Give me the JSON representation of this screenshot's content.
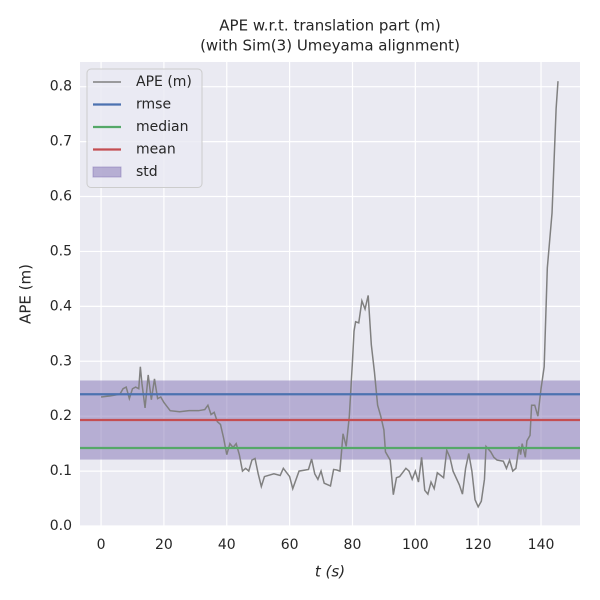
{
  "chart_data": {
    "type": "line",
    "title": [
      "APE w.r.t. translation part (m)",
      "(with Sim(3) Umeyama alignment)"
    ],
    "xlabel": "t (s)",
    "ylabel": "APE (m)",
    "x": [
      0,
      3,
      6,
      7,
      8,
      9,
      10,
      11,
      12,
      12.5,
      13,
      14,
      15,
      16,
      17,
      18,
      19,
      20,
      22,
      25,
      28,
      31,
      33,
      34,
      35,
      36,
      37,
      38,
      39,
      40,
      41,
      42,
      43,
      44,
      45,
      46,
      47,
      48,
      49,
      50,
      51,
      52,
      55,
      57,
      58,
      60,
      61,
      63,
      66,
      67,
      68,
      69,
      70,
      71,
      73,
      74,
      75,
      76,
      77,
      78,
      79,
      80,
      80.5,
      81,
      82,
      83,
      84,
      85,
      86,
      87,
      88,
      89,
      90,
      90.5,
      92,
      93,
      94,
      95,
      97,
      98,
      99,
      100,
      101,
      102,
      103,
      104,
      105,
      106,
      107,
      109,
      110,
      111,
      112,
      114,
      115,
      116,
      117,
      118,
      119,
      120,
      121,
      122,
      122.5,
      124,
      125,
      126,
      128,
      129,
      130,
      131,
      132,
      133,
      133.5,
      134,
      135,
      135.5,
      136.5,
      137,
      138,
      139,
      140,
      141,
      142,
      143.5,
      144.8,
      145.4
    ],
    "series": [
      {
        "name": "APE (m)",
        "color": "#808080",
        "values": [
          0.235,
          0.237,
          0.24,
          0.25,
          0.253,
          0.232,
          0.25,
          0.253,
          0.25,
          0.29,
          0.26,
          0.215,
          0.275,
          0.23,
          0.268,
          0.232,
          0.235,
          0.225,
          0.21,
          0.208,
          0.21,
          0.21,
          0.212,
          0.22,
          0.203,
          0.207,
          0.19,
          0.185,
          0.16,
          0.13,
          0.15,
          0.143,
          0.15,
          0.13,
          0.1,
          0.105,
          0.1,
          0.12,
          0.123,
          0.095,
          0.072,
          0.09,
          0.095,
          0.092,
          0.105,
          0.09,
          0.068,
          0.1,
          0.103,
          0.122,
          0.095,
          0.085,
          0.1,
          0.078,
          0.073,
          0.103,
          0.102,
          0.1,
          0.168,
          0.145,
          0.2,
          0.3,
          0.355,
          0.372,
          0.37,
          0.41,
          0.395,
          0.42,
          0.33,
          0.28,
          0.22,
          0.2,
          0.175,
          0.135,
          0.12,
          0.057,
          0.088,
          0.09,
          0.105,
          0.1,
          0.085,
          0.1,
          0.08,
          0.125,
          0.065,
          0.058,
          0.08,
          0.068,
          0.097,
          0.088,
          0.138,
          0.125,
          0.1,
          0.075,
          0.058,
          0.105,
          0.132,
          0.1,
          0.048,
          0.035,
          0.045,
          0.085,
          0.145,
          0.135,
          0.125,
          0.12,
          0.118,
          0.105,
          0.12,
          0.1,
          0.105,
          0.145,
          0.13,
          0.15,
          0.125,
          0.155,
          0.165,
          0.22,
          0.22,
          0.2,
          0.25,
          0.29,
          0.47,
          0.57,
          0.76,
          0.81
        ]
      }
    ],
    "stats": [
      {
        "name": "rmse",
        "color": "#4c72b0",
        "value": 0.24
      },
      {
        "name": "median",
        "color": "#55a868",
        "value": 0.142
      },
      {
        "name": "mean",
        "color": "#c44e52",
        "value": 0.193
      },
      {
        "name": "std",
        "color": "#8172b3",
        "value": 0.072
      }
    ],
    "xlim": [
      -6.7,
      152.4
    ],
    "ylim": [
      0,
      0.845
    ],
    "xticks": [
      0,
      20,
      40,
      60,
      80,
      100,
      120,
      140
    ],
    "yticks": [
      {
        "value": 0,
        "label": "0.0"
      },
      {
        "value": 0.1,
        "label": "0.1"
      },
      {
        "value": 0.2,
        "label": "0.2"
      },
      {
        "value": 0.3,
        "label": "0.3"
      },
      {
        "value": 0.4,
        "label": "0.4"
      },
      {
        "value": 0.5,
        "label": "0.5"
      },
      {
        "value": 0.6,
        "label": "0.6"
      },
      {
        "value": 0.7,
        "label": "0.7"
      },
      {
        "value": 0.8,
        "label": "0.8"
      }
    ],
    "grid": true,
    "legend": "upper left"
  }
}
